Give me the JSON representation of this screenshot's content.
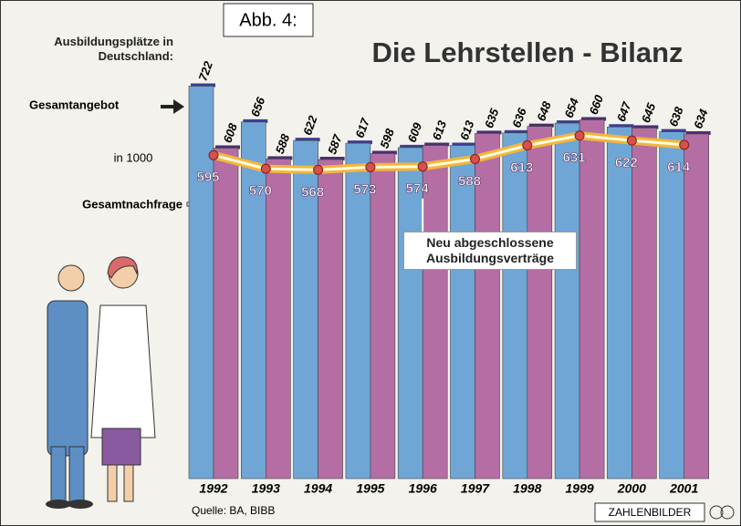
{
  "chart_data": {
    "type": "bar",
    "figure_label": "Abb. 4:",
    "subtitle": "Ausbildungsplätze in Deutschland:",
    "title": "Die Lehrstellen - Bilanz",
    "unit": "in 1000",
    "source": "Quelle: BA, BIBB",
    "publisher": "ZAHLENBILDER",
    "categories": [
      "1992",
      "1993",
      "1994",
      "1995",
      "1996",
      "1997",
      "1998",
      "1999",
      "2000",
      "2001"
    ],
    "series": [
      {
        "name": "Gesamtangebot",
        "color": "#6fa6d6",
        "values": [
          722,
          656,
          622,
          617,
          609,
          613,
          636,
          654,
          647,
          638
        ]
      },
      {
        "name": "Gesamtnachfrage",
        "color": "#b46ea4",
        "values": [
          608,
          588,
          587,
          598,
          613,
          635,
          648,
          660,
          645,
          634
        ]
      },
      {
        "name": "Neu abgeschlossene Ausbildungsverträge",
        "type": "line",
        "color": "#f5b63a",
        "values": [
          595,
          570,
          568,
          573,
          574,
          588,
          613,
          631,
          622,
          614
        ]
      }
    ],
    "ylim": [
      0,
      800
    ]
  }
}
